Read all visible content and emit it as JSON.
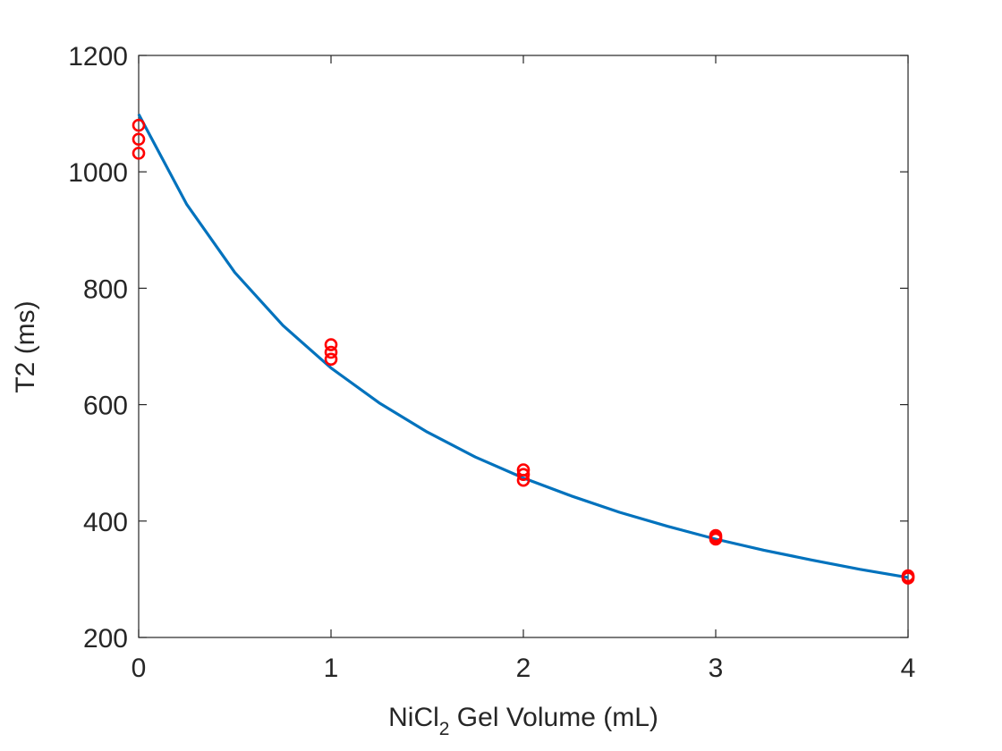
{
  "chart_data": {
    "type": "scatter",
    "xlabel": {
      "pre": "NiCl",
      "sub": "2",
      "post": " Gel Volume (mL)"
    },
    "ylabel": "T2 (ms)",
    "xlim": [
      0,
      4
    ],
    "ylim": [
      200,
      1200
    ],
    "xticks": [
      0,
      1,
      2,
      3,
      4
    ],
    "yticks": [
      200,
      400,
      600,
      800,
      1000,
      1200
    ],
    "grid": false,
    "series": [
      {
        "kind": "markers",
        "marker": "circle-open",
        "color": "#ff0000",
        "x": [
          0,
          0,
          0,
          1,
          1,
          1,
          2,
          2,
          2,
          3,
          3,
          3,
          4,
          4,
          4
        ],
        "y": [
          1080,
          1056,
          1032,
          703,
          690,
          678,
          488,
          480,
          470,
          375,
          372,
          369,
          306,
          304,
          302
        ]
      },
      {
        "kind": "fit-line",
        "color": "#0072bd",
        "x": [
          0,
          0.25,
          0.5,
          0.75,
          1,
          1.25,
          1.5,
          1.75,
          2,
          2.25,
          2.5,
          2.75,
          3,
          3.25,
          3.5,
          3.75,
          4
        ],
        "y": [
          1099,
          944,
          827,
          736,
          663,
          603,
          553,
          510,
          474,
          443,
          415,
          391,
          369,
          350,
          333,
          317,
          303
        ]
      }
    ]
  }
}
